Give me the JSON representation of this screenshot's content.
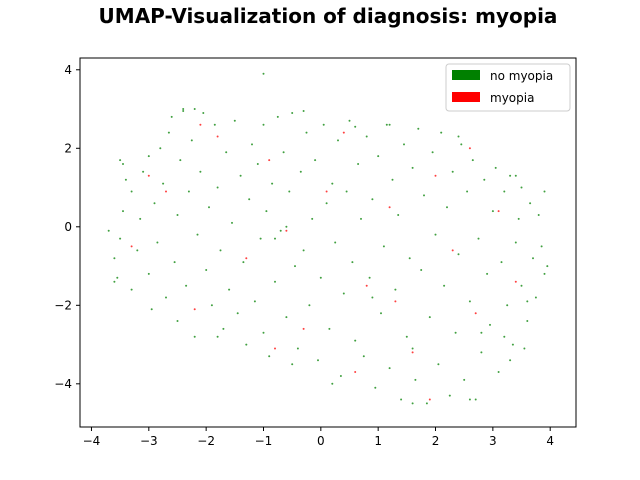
{
  "chart_data": {
    "type": "scatter",
    "title": "UMAP-Visualization of diagnosis: myopia",
    "xlabel": "",
    "ylabel": "",
    "xlim": [
      -4.2,
      4.45
    ],
    "ylim": [
      -5.1,
      4.3
    ],
    "xticks": [
      -4,
      -3,
      -2,
      -1,
      0,
      1,
      2,
      3,
      4
    ],
    "yticks": [
      -4,
      -2,
      0,
      2,
      4
    ],
    "legend_position": "top-right",
    "grid": false,
    "series": [
      {
        "name": "no myopia",
        "color": "#008000",
        "points": [
          [
            -3.7,
            -0.1
          ],
          [
            -3.6,
            -0.8
          ],
          [
            -3.55,
            -1.3
          ],
          [
            -3.5,
            -0.3
          ],
          [
            -3.45,
            0.4
          ],
          [
            -3.4,
            1.2
          ],
          [
            -3.45,
            1.6
          ],
          [
            -3.3,
            0.9
          ],
          [
            -3.3,
            -1.6
          ],
          [
            -3.2,
            -0.6
          ],
          [
            -3.15,
            0.2
          ],
          [
            -3.1,
            1.4
          ],
          [
            -3.0,
            1.8
          ],
          [
            -3.0,
            -1.2
          ],
          [
            -2.95,
            -2.1
          ],
          [
            -2.9,
            0.6
          ],
          [
            -2.85,
            -0.4
          ],
          [
            -2.8,
            2.0
          ],
          [
            -2.75,
            1.1
          ],
          [
            -2.7,
            -1.8
          ],
          [
            -2.65,
            2.4
          ],
          [
            -2.6,
            2.8
          ],
          [
            -2.55,
            -0.9
          ],
          [
            -2.5,
            0.3
          ],
          [
            -2.5,
            -2.4
          ],
          [
            -2.45,
            1.7
          ],
          [
            -2.4,
            3.0
          ],
          [
            -2.35,
            -1.5
          ],
          [
            -2.3,
            0.9
          ],
          [
            -2.25,
            2.2
          ],
          [
            -2.2,
            -2.8
          ],
          [
            -2.15,
            -0.2
          ],
          [
            -2.1,
            1.4
          ],
          [
            -2.05,
            2.9
          ],
          [
            -2.0,
            -1.1
          ],
          [
            -1.95,
            0.5
          ],
          [
            -1.9,
            -2.0
          ],
          [
            -1.85,
            2.6
          ],
          [
            -1.8,
            1.0
          ],
          [
            -1.75,
            -0.6
          ],
          [
            -1.7,
            -2.6
          ],
          [
            -1.65,
            1.9
          ],
          [
            -1.6,
            -1.6
          ],
          [
            -1.55,
            0.1
          ],
          [
            -1.5,
            2.7
          ],
          [
            -1.45,
            -2.2
          ],
          [
            -1.4,
            1.3
          ],
          [
            -1.35,
            -0.9
          ],
          [
            -1.3,
            -3.0
          ],
          [
            -1.25,
            0.7
          ],
          [
            -1.2,
            2.1
          ],
          [
            -1.15,
            -1.9
          ],
          [
            -1.1,
            1.6
          ],
          [
            -1.05,
            -0.3
          ],
          [
            -1.0,
            2.6
          ],
          [
            -1.0,
            -2.7
          ],
          [
            -0.95,
            0.4
          ],
          [
            -0.9,
            -3.3
          ],
          [
            -0.85,
            1.1
          ],
          [
            -0.8,
            -1.4
          ],
          [
            -0.75,
            2.8
          ],
          [
            -0.7,
            -0.1
          ],
          [
            -0.65,
            1.9
          ],
          [
            -0.6,
            -2.3
          ],
          [
            -0.55,
            0.9
          ],
          [
            -0.5,
            2.9
          ],
          [
            -0.45,
            -1.0
          ],
          [
            -0.4,
            -3.1
          ],
          [
            -0.35,
            1.4
          ],
          [
            -0.3,
            -0.6
          ],
          [
            -0.25,
            2.4
          ],
          [
            -0.2,
            -2.0
          ],
          [
            -0.15,
            0.2
          ],
          [
            -0.1,
            1.7
          ],
          [
            -0.05,
            -3.4
          ],
          [
            0.0,
            -1.3
          ],
          [
            0.05,
            2.6
          ],
          [
            0.1,
            0.6
          ],
          [
            0.15,
            -2.6
          ],
          [
            0.2,
            1.1
          ],
          [
            0.25,
            -0.4
          ],
          [
            0.3,
            2.2
          ],
          [
            0.35,
            -3.8
          ],
          [
            0.4,
            -1.7
          ],
          [
            0.45,
            0.9
          ],
          [
            0.5,
            2.7
          ],
          [
            0.55,
            -0.9
          ],
          [
            0.6,
            -2.9
          ],
          [
            0.65,
            1.6
          ],
          [
            0.7,
            0.2
          ],
          [
            0.75,
            -3.3
          ],
          [
            0.8,
            2.3
          ],
          [
            0.85,
            -1.3
          ],
          [
            0.9,
            0.7
          ],
          [
            0.95,
            -4.1
          ],
          [
            1.0,
            1.8
          ],
          [
            1.05,
            -2.2
          ],
          [
            1.1,
            -0.5
          ],
          [
            1.15,
            2.6
          ],
          [
            1.2,
            -3.6
          ],
          [
            1.25,
            1.2
          ],
          [
            1.3,
            -1.6
          ],
          [
            1.35,
            0.3
          ],
          [
            1.4,
            -4.4
          ],
          [
            1.45,
            2.1
          ],
          [
            1.5,
            -2.8
          ],
          [
            1.55,
            -0.8
          ],
          [
            1.6,
            1.5
          ],
          [
            1.65,
            -3.9
          ],
          [
            1.7,
            2.5
          ],
          [
            1.75,
            -1.1
          ],
          [
            1.8,
            0.8
          ],
          [
            1.85,
            -4.5
          ],
          [
            1.9,
            -2.3
          ],
          [
            1.95,
            1.9
          ],
          [
            2.0,
            -0.2
          ],
          [
            2.05,
            -3.5
          ],
          [
            2.1,
            2.4
          ],
          [
            2.15,
            -1.5
          ],
          [
            2.2,
            0.5
          ],
          [
            2.25,
            -4.3
          ],
          [
            2.3,
            1.4
          ],
          [
            2.35,
            -2.7
          ],
          [
            2.4,
            -0.7
          ],
          [
            2.45,
            2.1
          ],
          [
            2.5,
            -3.9
          ],
          [
            2.55,
            0.9
          ],
          [
            2.6,
            -1.9
          ],
          [
            2.65,
            1.7
          ],
          [
            2.7,
            -4.4
          ],
          [
            2.75,
            -0.3
          ],
          [
            2.8,
            -3.2
          ],
          [
            2.85,
            1.2
          ],
          [
            2.9,
            -1.2
          ],
          [
            2.95,
            -2.5
          ],
          [
            3.0,
            0.4
          ],
          [
            3.05,
            1.5
          ],
          [
            3.1,
            -3.7
          ],
          [
            3.15,
            -0.9
          ],
          [
            3.2,
            0.9
          ],
          [
            3.25,
            -2.0
          ],
          [
            3.3,
            1.3
          ],
          [
            3.35,
            -3.0
          ],
          [
            3.4,
            -0.4
          ],
          [
            3.45,
            0.2
          ],
          [
            3.5,
            1.0
          ],
          [
            3.5,
            -1.5
          ],
          [
            3.55,
            -3.1
          ],
          [
            3.6,
            -2.4
          ],
          [
            3.65,
            0.6
          ],
          [
            3.7,
            -0.8
          ],
          [
            3.75,
            -1.8
          ],
          [
            3.8,
            0.3
          ],
          [
            3.85,
            -0.5
          ],
          [
            3.9,
            -1.2
          ],
          [
            3.95,
            -1.0
          ],
          [
            3.9,
            0.9
          ],
          [
            3.6,
            -1.9
          ],
          [
            3.4,
            1.3
          ],
          [
            3.2,
            -2.8
          ],
          [
            -1.0,
            3.9
          ],
          [
            -2.4,
            2.95
          ],
          [
            -0.3,
            2.95
          ],
          [
            0.6,
            2.55
          ],
          [
            1.6,
            -4.5
          ],
          [
            2.6,
            -4.4
          ],
          [
            -0.5,
            -3.5
          ],
          [
            -1.8,
            -2.8
          ],
          [
            -3.5,
            1.7
          ],
          [
            -3.6,
            -1.4
          ],
          [
            2.4,
            2.3
          ],
          [
            1.2,
            2.6
          ],
          [
            -2.2,
            3.0
          ],
          [
            0.2,
            -4.0
          ],
          [
            -0.6,
            0.0
          ],
          [
            -0.8,
            -0.3
          ],
          [
            0.9,
            -1.8
          ],
          [
            1.6,
            -3.1
          ],
          [
            2.8,
            -2.7
          ],
          [
            3.3,
            -3.4
          ]
        ]
      },
      {
        "name": "myopia",
        "color": "#ff0000",
        "points": [
          [
            -3.3,
            -0.5
          ],
          [
            -2.7,
            0.9
          ],
          [
            -2.2,
            -2.1
          ],
          [
            -1.8,
            2.3
          ],
          [
            -1.3,
            -0.8
          ],
          [
            -0.9,
            1.7
          ],
          [
            -0.6,
            -0.1
          ],
          [
            -0.3,
            -2.6
          ],
          [
            0.1,
            0.9
          ],
          [
            0.4,
            2.4
          ],
          [
            0.8,
            -1.5
          ],
          [
            1.2,
            0.5
          ],
          [
            1.6,
            -3.2
          ],
          [
            2.0,
            1.3
          ],
          [
            2.3,
            -0.6
          ],
          [
            2.7,
            -2.2
          ],
          [
            3.1,
            0.4
          ],
          [
            3.4,
            -1.4
          ],
          [
            -2.1,
            2.6
          ],
          [
            1.9,
            -4.4
          ],
          [
            -0.8,
            -3.1
          ],
          [
            0.6,
            -3.7
          ],
          [
            2.6,
            2.0
          ],
          [
            -3.0,
            1.3
          ],
          [
            1.3,
            -1.9
          ]
        ]
      }
    ]
  }
}
